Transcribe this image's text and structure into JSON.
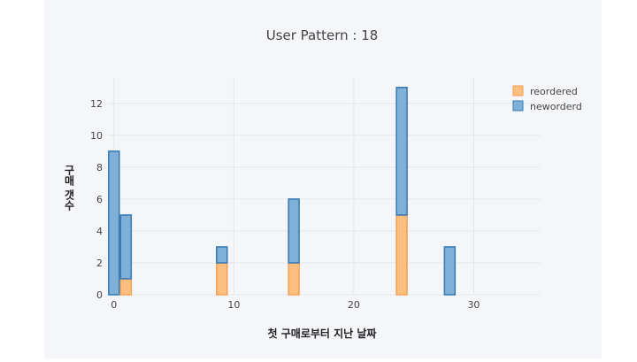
{
  "chart_data": {
    "type": "bar",
    "title": "User Pattern : 18",
    "xlabel": "첫 구매로부터 지난 날짜",
    "ylabel": "구매 갯수",
    "xlim": [
      -0.5,
      35.5
    ],
    "ylim": [
      0,
      13.6
    ],
    "x_ticks": [
      0,
      10,
      20,
      30
    ],
    "y_ticks": [
      0,
      2,
      4,
      6,
      8,
      10,
      12
    ],
    "grid": true,
    "stacked": true,
    "legend_position": "top-right",
    "x": [
      0,
      1,
      9,
      15,
      24,
      28
    ],
    "series": [
      {
        "name": "reordered",
        "color": "#fdbf80",
        "stroke": "#f4a052",
        "values": [
          0,
          1,
          2,
          2,
          5,
          0
        ]
      },
      {
        "name": "neworderd",
        "color": "#7fb0d8",
        "stroke": "#3578b4",
        "values": [
          9,
          4,
          1,
          4,
          8,
          3
        ]
      }
    ]
  }
}
